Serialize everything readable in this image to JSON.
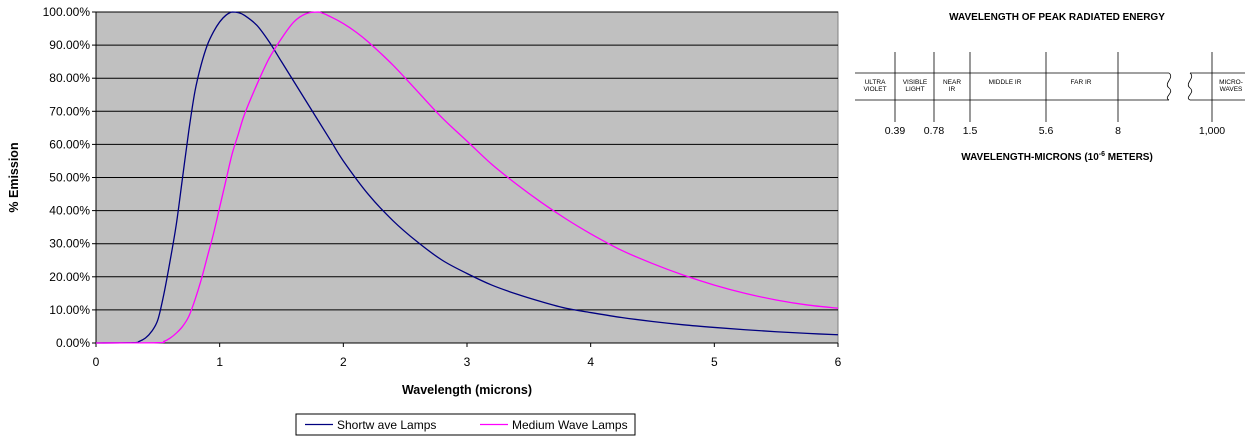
{
  "chart_data": {
    "type": "line",
    "xlabel": "Wavelength (microns)",
    "ylabel": "% Emission",
    "xlim": [
      0,
      6
    ],
    "ylim": [
      0,
      100
    ],
    "x_ticks": [
      "0",
      "1",
      "2",
      "3",
      "4",
      "5",
      "6"
    ],
    "y_ticks": [
      "0.00%",
      "10.00%",
      "20.00%",
      "30.00%",
      "40.00%",
      "50.00%",
      "60.00%",
      "70.00%",
      "80.00%",
      "90.00%",
      "100.00%"
    ],
    "grid": "horizontal",
    "plot_background": "#c0c0c0",
    "legend_position": "bottom",
    "series": [
      {
        "name": "Shortw ave Lamps",
        "color": "#000080",
        "x": [
          0,
          0.3,
          0.35,
          0.4,
          0.45,
          0.5,
          0.55,
          0.6,
          0.65,
          0.7,
          0.75,
          0.8,
          0.85,
          0.9,
          0.95,
          1.0,
          1.05,
          1.1,
          1.15,
          1.2,
          1.3,
          1.4,
          1.5,
          1.6,
          1.7,
          1.8,
          1.9,
          2.0,
          2.2,
          2.4,
          2.6,
          2.8,
          3.0,
          3.2,
          3.4,
          3.6,
          3.8,
          4.0,
          4.25,
          4.5,
          4.75,
          5.0,
          5.25,
          5.5,
          5.75,
          6.0
        ],
        "y": [
          0,
          0.1,
          0.5,
          1.5,
          3.5,
          7,
          15,
          25,
          36,
          50,
          64,
          76,
          84,
          90,
          94,
          97,
          99,
          100,
          99.8,
          99,
          96,
          91,
          85,
          79,
          73,
          67,
          61,
          55,
          45,
          37,
          30.5,
          25,
          21,
          17.5,
          14.8,
          12.5,
          10.5,
          9.2,
          7.7,
          6.5,
          5.5,
          4.7,
          4.0,
          3.4,
          2.9,
          2.5
        ]
      },
      {
        "name": "Medium Wave Lamps",
        "color": "#ff00ff",
        "x": [
          0,
          0.5,
          0.55,
          0.6,
          0.65,
          0.7,
          0.75,
          0.8,
          0.85,
          0.9,
          0.95,
          1.0,
          1.05,
          1.1,
          1.15,
          1.2,
          1.3,
          1.4,
          1.5,
          1.6,
          1.7,
          1.8,
          1.9,
          2.0,
          2.1,
          2.2,
          2.4,
          2.6,
          2.8,
          3.0,
          3.2,
          3.4,
          3.6,
          3.8,
          4.0,
          4.25,
          4.5,
          4.75,
          5.0,
          5.25,
          5.5,
          5.75,
          6.0
        ],
        "y": [
          0,
          0.1,
          0.5,
          1.5,
          3,
          5,
          8,
          13,
          19,
          26,
          33,
          41,
          49,
          57,
          63,
          69,
          78,
          86,
          92,
          97,
          99.5,
          100,
          98.5,
          96.5,
          94,
          91,
          84,
          76,
          68,
          61,
          54,
          48,
          42.5,
          37.5,
          33,
          28,
          24,
          20.5,
          17.5,
          15,
          13,
          11.5,
          10.5
        ]
      }
    ]
  },
  "spectrum": {
    "title": "WAVELENGTH OF PEAK RADIATED ENERGY",
    "axis_label": "WAVELENGTH-MICRONS (10",
    "axis_exponent": "-6",
    "axis_suffix": " METERS)",
    "bands": [
      {
        "line1": "ULTRA",
        "line2": "VIOLET"
      },
      {
        "line1": "VISIBLE",
        "line2": "LIGHT"
      },
      {
        "line1": "NEAR",
        "line2": "IR"
      },
      {
        "line1": "MIDDLE IR",
        "line2": ""
      },
      {
        "line1": "FAR IR",
        "line2": ""
      },
      {
        "line1": "MICRO-",
        "line2": "WAVES"
      }
    ],
    "boundaries": [
      "0.39",
      "0.78",
      "1.5",
      "5.6",
      "8",
      "1,000"
    ]
  }
}
